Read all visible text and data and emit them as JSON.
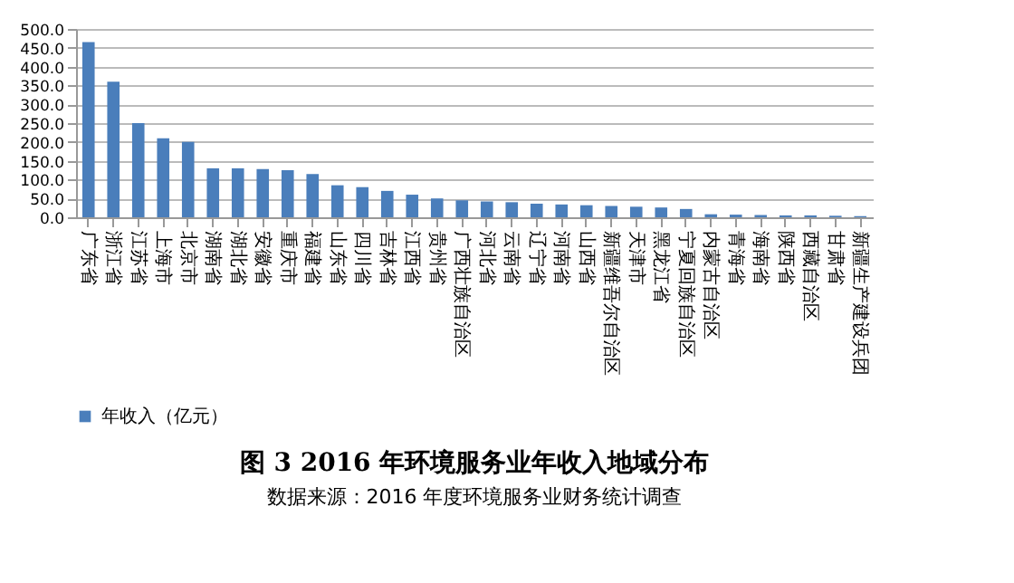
{
  "chart_data": {
    "type": "bar",
    "title": "图 3  2016 年环境服务业年收入地域分布",
    "annotations": [
      "数据来源：2016 年度环境服务业财务统计调查"
    ],
    "categories": [
      "广东省",
      "浙江省",
      "江苏省",
      "上海市",
      "北京市",
      "湖南省",
      "湖北省",
      "安徽省",
      "重庆市",
      "福建省",
      "山东省",
      "四川省",
      "吉林省",
      "江西省",
      "贵州省",
      "广西壮族自治区",
      "河北省",
      "云南省",
      "辽宁省",
      "河南省",
      "山西省",
      "新疆维吾尔自治区",
      "天津市",
      "黑龙江省",
      "宁夏回族自治区",
      "内蒙古自治区",
      "青海省",
      "海南省",
      "陕西省",
      "西藏自治区",
      "甘肃省",
      "新疆生产建设兵团"
    ],
    "series": [
      {
        "name": "年收入（亿元）",
        "color": "#4a7ebb",
        "values": [
          465,
          360,
          250,
          210,
          200,
          130,
          130,
          128,
          125,
          115,
          85,
          80,
          70,
          60,
          50,
          45,
          42,
          40,
          36,
          34,
          32,
          30,
          28,
          26,
          22,
          8,
          7,
          6,
          5,
          5,
          4,
          3
        ]
      }
    ],
    "ylim": [
      0,
      500
    ],
    "yticks": [
      {
        "value": 0,
        "label": "0.0"
      },
      {
        "value": 50,
        "label": "50.0"
      },
      {
        "value": 100,
        "label": "100.0"
      },
      {
        "value": 150,
        "label": "150.0"
      },
      {
        "value": 200,
        "label": "200.0"
      },
      {
        "value": 250,
        "label": "250.0"
      },
      {
        "value": 300,
        "label": "300.0"
      },
      {
        "value": 350,
        "label": "350.0"
      },
      {
        "value": 400,
        "label": "400.0"
      },
      {
        "value": 450,
        "label": "450.0"
      },
      {
        "value": 500,
        "label": "500.0"
      }
    ],
    "grid": "y",
    "legend": "bottom"
  }
}
